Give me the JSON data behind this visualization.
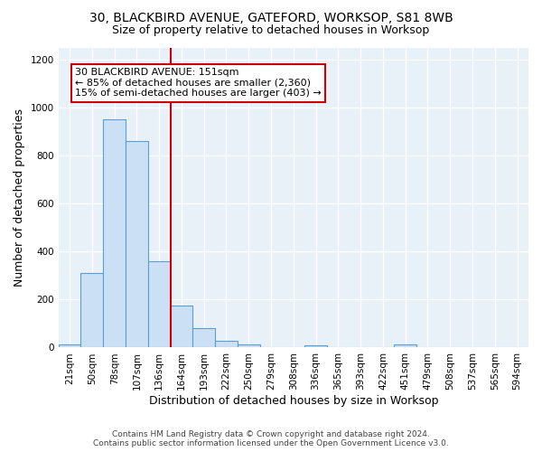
{
  "title1": "30, BLACKBIRD AVENUE, GATEFORD, WORKSOP, S81 8WB",
  "title2": "Size of property relative to detached houses in Worksop",
  "xlabel": "Distribution of detached houses by size in Worksop",
  "ylabel": "Number of detached properties",
  "footnote": "Contains HM Land Registry data © Crown copyright and database right 2024.\nContains public sector information licensed under the Open Government Licence v3.0.",
  "bin_labels": [
    "21sqm",
    "50sqm",
    "78sqm",
    "107sqm",
    "136sqm",
    "164sqm",
    "193sqm",
    "222sqm",
    "250sqm",
    "279sqm",
    "308sqm",
    "336sqm",
    "365sqm",
    "393sqm",
    "422sqm",
    "451sqm",
    "479sqm",
    "508sqm",
    "537sqm",
    "565sqm",
    "594sqm"
  ],
  "bar_values": [
    12,
    310,
    950,
    862,
    360,
    175,
    80,
    27,
    12,
    0,
    0,
    10,
    0,
    0,
    0,
    12,
    0,
    0,
    0,
    0,
    0
  ],
  "bar_color": "#cce0f5",
  "bar_edge_color": "#5a9fd4",
  "vline_x_index": 4.5,
  "vline_color": "#cc0000",
  "annotation_line1": "30 BLACKBIRD AVENUE: 151sqm",
  "annotation_line2": "← 85% of detached houses are smaller (2,360)",
  "annotation_line3": "15% of semi-detached houses are larger (403) →",
  "annotation_box_color": "white",
  "annotation_box_edge": "#cc0000",
  "ylim": [
    0,
    1250
  ],
  "yticks": [
    0,
    200,
    400,
    600,
    800,
    1000,
    1200
  ],
  "bg_color": "#e8f0f8",
  "grid_color": "white",
  "title1_fontsize": 10,
  "title2_fontsize": 9,
  "xlabel_fontsize": 9,
  "ylabel_fontsize": 9,
  "tick_fontsize": 7.5,
  "annot_fontsize": 8,
  "footnote_fontsize": 6.5
}
